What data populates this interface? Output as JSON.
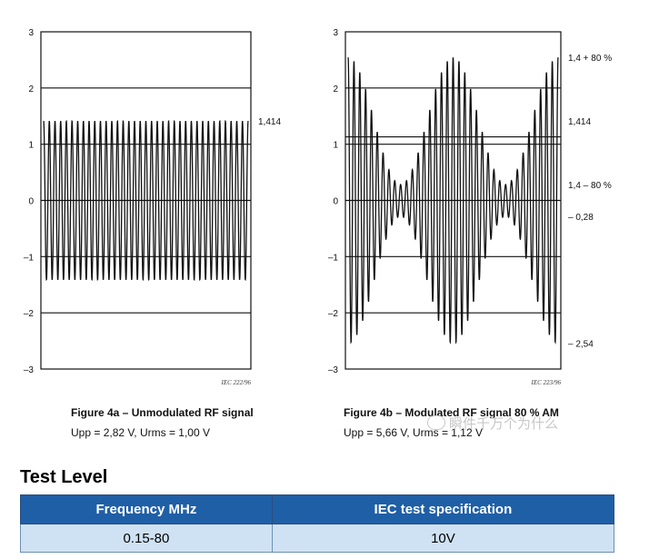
{
  "chart_data": [
    {
      "type": "line",
      "caption_title": "Figure 4a – Unmodulated RF signal",
      "caption_sub": "Upp = 2,82 V,   Urms = 1,00 V",
      "ref_code": "IEC  222/96",
      "ylim": [
        -3,
        3
      ],
      "yticks": [
        "3",
        "2",
        "1",
        "0",
        "–1",
        "–2",
        "–3"
      ],
      "cycles": 36,
      "amplitude": 1.414,
      "right_annotations": [
        {
          "y": 1.414,
          "label": "1,414"
        }
      ]
    },
    {
      "type": "line",
      "caption_title": "Figure 4b – Modulated RF signal 80 % AM",
      "caption_sub": "Upp = 5,66 V,   Urms = 1,12 V",
      "ref_code": "IEC  223/96",
      "ylim": [
        -3,
        3
      ],
      "yticks": [
        "3",
        "2",
        "1",
        "0",
        "–1",
        "–2",
        "–3"
      ],
      "cycles": 36,
      "carrier_amplitude": 1.414,
      "modulation_depth": 0.8,
      "modulation_cycles": 2,
      "right_annotations": [
        {
          "y": 2.545,
          "label": "1,4 + 80 %"
        },
        {
          "y": 1.414,
          "label": "1,414"
        },
        {
          "y": 0.28,
          "label": "1,4 – 80 %"
        },
        {
          "y": -0.28,
          "label": "– 0,28"
        },
        {
          "y": -2.54,
          "label": "– 2,54"
        }
      ]
    }
  ],
  "watermark": "瞬件千万个为什么",
  "test_level": {
    "heading": "Test Level",
    "columns": [
      "Frequency MHz",
      "IEC test specification"
    ],
    "rows": [
      [
        "0.15-80",
        "10V"
      ]
    ]
  },
  "colors": {
    "header_bg": "#1f5fa6",
    "cell_bg": "#cfe2f3",
    "waveform": "#111111"
  }
}
